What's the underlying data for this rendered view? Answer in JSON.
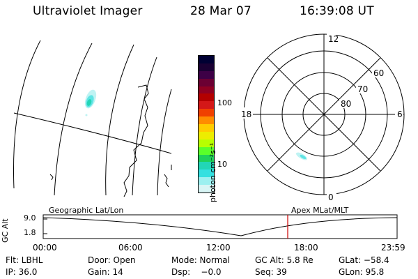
{
  "header": {
    "instrument": "Ultraviolet Imager",
    "date": "28 Mar 07",
    "time": "16:39:08 UT"
  },
  "colorbar": {
    "unit_label": "photon cm⁻²s⁻¹",
    "ticks": [
      "100",
      "10"
    ],
    "colors": [
      "#000033",
      "#1a0033",
      "#3d0046",
      "#6b0033",
      "#8f0022",
      "#b30000",
      "#d41818",
      "#f04000",
      "#ff8c00",
      "#ffcc00",
      "#eded00",
      "#b8ff00",
      "#5aff2a",
      "#1fd15a",
      "#22d6b6",
      "#33e0e0",
      "#9cf0f0",
      "#d8f5f5"
    ]
  },
  "polar_plot": {
    "mlt_labels": {
      "top": "12",
      "left": "18",
      "right": "6",
      "bottom": "0"
    },
    "lat_labels": [
      "60",
      "70",
      "80"
    ]
  },
  "map_panel": {
    "label": "Geographic Lat/Lon"
  },
  "timeline": {
    "title_left": "Geographic Lat/Lon",
    "title_right": "Apex MLat/MLT",
    "yaxis_label": "GC Alt",
    "yticks": [
      "9.0",
      "1.8"
    ],
    "xticks": [
      "00:00",
      "06:00",
      "12:00",
      "18:00",
      "23:59"
    ],
    "marker_color": "#cc0000"
  },
  "status": {
    "row1": {
      "flt": "Flt: LBHL",
      "door": "Door: Open",
      "mode": "Mode: Normal",
      "gcalt": "GC Alt: 5.8 Re",
      "glat": "GLat: −58.4"
    },
    "row2": {
      "ip": "IP: 36.0",
      "gain": "Gain: 14",
      "dsp": "Dsp:    −0.0",
      "seq": "Seq: 39",
      "glon": "GLon: 95.8"
    }
  }
}
